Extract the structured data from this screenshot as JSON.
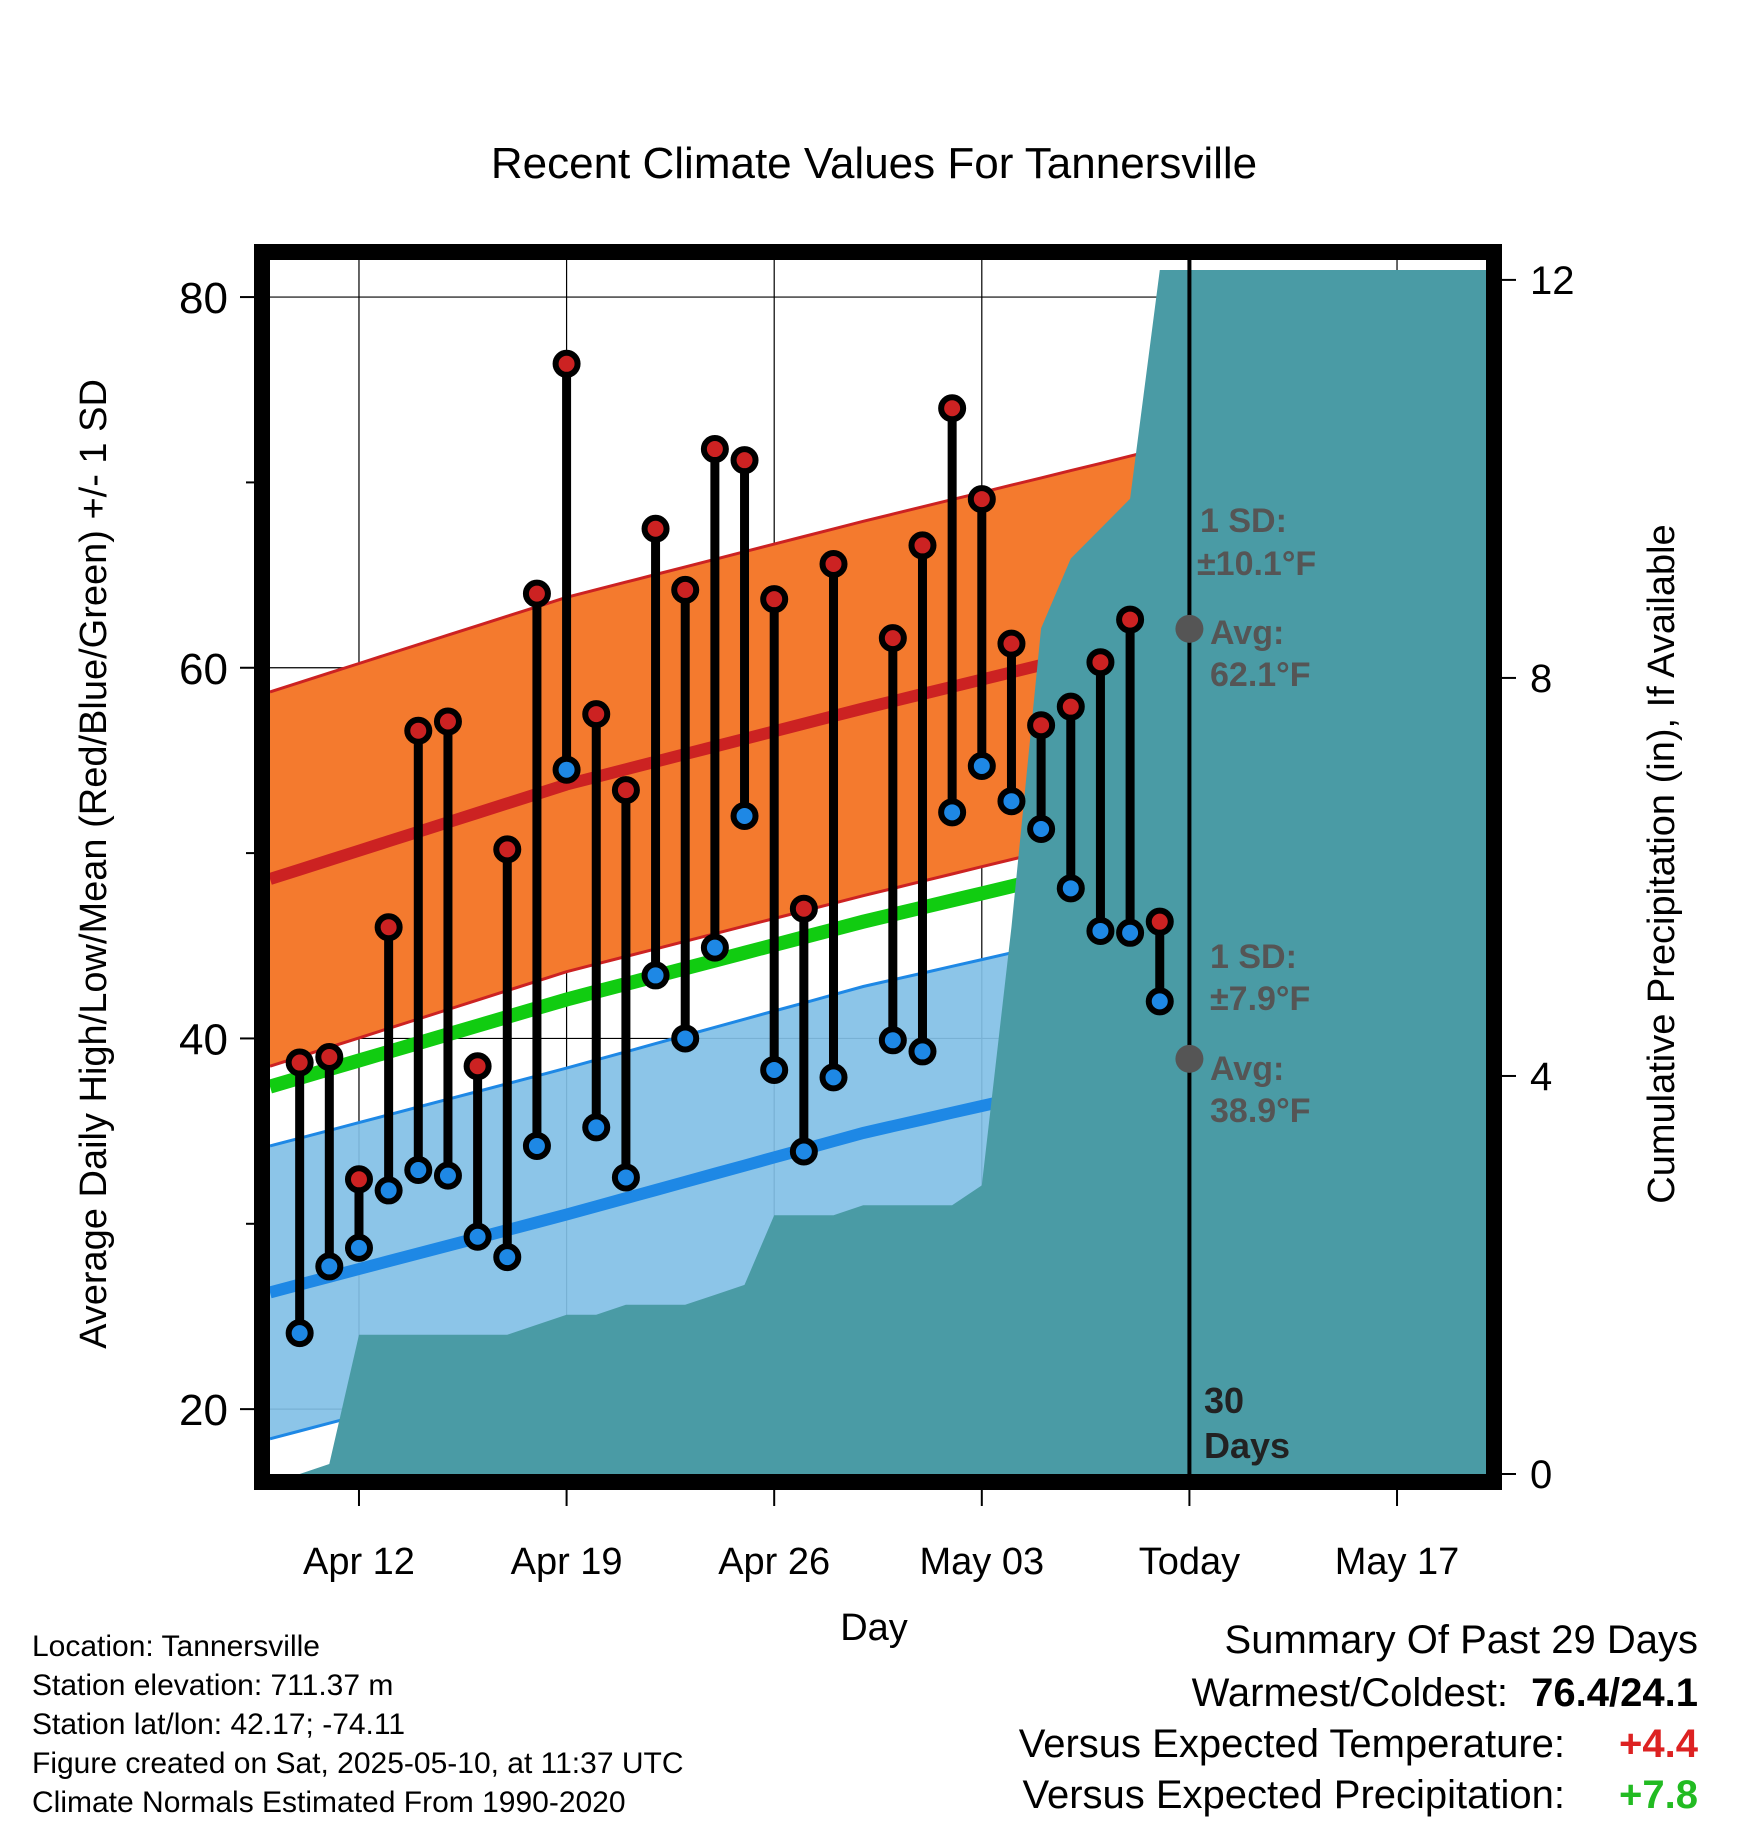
{
  "chart_data": {
    "type": "line",
    "title": "Recent Climate Values For Tannersville",
    "xlabel": "Day",
    "ylabel": "Average Daily High/Low/Mean (Red/Blue/Green) +/- 1 SD",
    "y2label": "Cumulative Precipitation (in), If Available",
    "ylim": [
      16.5,
      82
    ],
    "y2lim": [
      0,
      12.2
    ],
    "xlim": [
      "Apr 09",
      "May 20"
    ],
    "grid": true,
    "yticks": [
      20,
      40,
      60,
      80
    ],
    "y2ticks": [
      0,
      4,
      8,
      12
    ],
    "xticks": [
      {
        "date": "Apr 12",
        "label": "Apr 12"
      },
      {
        "date": "Apr 19",
        "label": "Apr 19"
      },
      {
        "date": "Apr 26",
        "label": "Apr 26"
      },
      {
        "date": "May 03",
        "label": "May 03"
      },
      {
        "date": "May 10",
        "label": "Today"
      },
      {
        "date": "May 17",
        "label": "May 17"
      }
    ],
    "normals": {
      "dates": [
        "Apr 09",
        "Apr 19",
        "Apr 29",
        "May 10",
        "May 20"
      ],
      "high_mean": [
        48.6,
        53.7,
        57.8,
        62.1,
        64.8
      ],
      "high_sd": 10.1,
      "low_mean": [
        26.3,
        30.5,
        34.9,
        38.9,
        41.7
      ],
      "low_sd": 7.9,
      "mean": [
        37.4,
        42.1,
        46.3,
        50.5,
        53.2
      ]
    },
    "series": [
      {
        "name": "High",
        "dates": [
          "Apr 10",
          "Apr 11",
          "Apr 12",
          "Apr 13",
          "Apr 14",
          "Apr 15",
          "Apr 16",
          "Apr 17",
          "Apr 18",
          "Apr 19",
          "Apr 20",
          "Apr 21",
          "Apr 22",
          "Apr 23",
          "Apr 24",
          "Apr 25",
          "Apr 26",
          "Apr 27",
          "Apr 28",
          "Apr 30",
          "May 01",
          "May 02",
          "May 03",
          "May 04",
          "May 05",
          "May 06",
          "May 07",
          "May 08",
          "May 09"
        ],
        "values": [
          38.7,
          39.0,
          32.4,
          46.0,
          56.6,
          57.1,
          38.5,
          50.2,
          64.0,
          76.4,
          57.5,
          53.4,
          67.5,
          64.2,
          71.8,
          71.2,
          63.7,
          47.0,
          65.6,
          61.6,
          66.6,
          74.0,
          69.1,
          61.3,
          56.9,
          57.9,
          60.3,
          62.6,
          46.3
        ]
      },
      {
        "name": "Low",
        "dates": [
          "Apr 10",
          "Apr 11",
          "Apr 12",
          "Apr 13",
          "Apr 14",
          "Apr 15",
          "Apr 16",
          "Apr 17",
          "Apr 18",
          "Apr 19",
          "Apr 20",
          "Apr 21",
          "Apr 22",
          "Apr 23",
          "Apr 24",
          "Apr 25",
          "Apr 26",
          "Apr 27",
          "Apr 28",
          "Apr 30",
          "May 01",
          "May 02",
          "May 03",
          "May 04",
          "May 05",
          "May 06",
          "May 07",
          "May 08",
          "May 09"
        ],
        "values": [
          24.1,
          27.7,
          28.7,
          31.8,
          32.9,
          32.6,
          29.3,
          28.2,
          34.2,
          54.5,
          35.2,
          32.5,
          43.4,
          40.0,
          44.9,
          52.0,
          38.3,
          33.9,
          37.9,
          39.9,
          39.3,
          52.2,
          54.7,
          52.8,
          51.3,
          48.1,
          45.8,
          45.7,
          42.0
        ]
      },
      {
        "name": "Cumulative Precipitation",
        "dates": [
          "Apr 09",
          "Apr 10",
          "Apr 11",
          "Apr 12",
          "Apr 16",
          "Apr 17",
          "Apr 18",
          "Apr 19",
          "Apr 20",
          "Apr 21",
          "Apr 22",
          "Apr 23",
          "Apr 24",
          "Apr 25",
          "Apr 26",
          "Apr 27",
          "Apr 28",
          "Apr 29",
          "Apr 30",
          "May 01",
          "May 02",
          "May 03",
          "May 04",
          "May 05",
          "May 06",
          "May 07",
          "May 08",
          "May 09",
          "May 10",
          "May 20"
        ],
        "values": [
          0,
          0,
          0.1,
          1.4,
          1.4,
          1.4,
          1.5,
          1.6,
          1.6,
          1.7,
          1.7,
          1.7,
          1.8,
          1.9,
          2.6,
          2.6,
          2.6,
          2.7,
          2.7,
          2.7,
          2.7,
          2.9,
          5.5,
          8.5,
          9.2,
          9.5,
          9.8,
          12.1,
          12.1,
          12.1
        ]
      }
    ],
    "annotations": {
      "high_sd_label": "1 SD:",
      "high_sd_value": "±10.1°F",
      "high_avg_label": "Avg:",
      "high_avg_value": "62.1°F",
      "low_sd_label": "1 SD:",
      "low_sd_value": "±7.9°F",
      "low_avg_label": "Avg:",
      "low_avg_value": "38.9°F",
      "today_count": "30",
      "today_unit": "Days"
    },
    "colors": {
      "high": "#cc2222",
      "high_band": "#f47a2e",
      "low": "#1e88e5",
      "low_band": "#82c0e6",
      "mean": "#11cc11",
      "precip": "#4a9ba5",
      "annotation": "#555555",
      "positive_temp": "#dd2222",
      "positive_precip": "#22bb22"
    }
  },
  "info": {
    "location": "Location: Tannersville",
    "elevation": "Station elevation: 711.37 m",
    "latlon": "Station lat/lon: 42.17; -74.11",
    "created": "Figure created on Sat, 2025-05-10, at 11:37 UTC",
    "normals": "Climate Normals Estimated From 1990-2020"
  },
  "summary": {
    "title": "Summary Of Past 29 Days",
    "warmest_label": "Warmest/Coldest:",
    "warmest_value": "76.4/24.1",
    "temp_label": "Versus Expected Temperature:",
    "temp_value": "+4.4",
    "precip_label": "Versus Expected Precipitation:",
    "precip_value": "+7.8"
  }
}
